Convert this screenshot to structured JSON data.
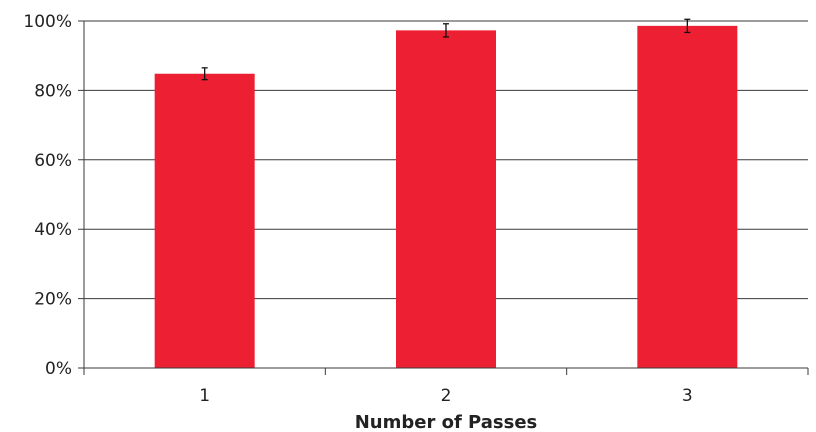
{
  "chart_data": {
    "type": "bar",
    "categories": [
      "1",
      "2",
      "3"
    ],
    "values": [
      84.8,
      97.3,
      98.6
    ],
    "error": [
      1.7,
      1.9,
      1.9
    ],
    "value_format": "percent",
    "title": "",
    "xlabel": "Number of Passes",
    "ylabel": "",
    "ylim": [
      0,
      100
    ],
    "yticks": [
      0,
      20,
      40,
      60,
      80,
      100
    ],
    "ytick_labels": [
      "0%",
      "20%",
      "40%",
      "60%",
      "80%",
      "100%"
    ],
    "grid": true,
    "legend": "none",
    "bar_color": "#ED1F33",
    "error_bar_color": "#111111"
  }
}
